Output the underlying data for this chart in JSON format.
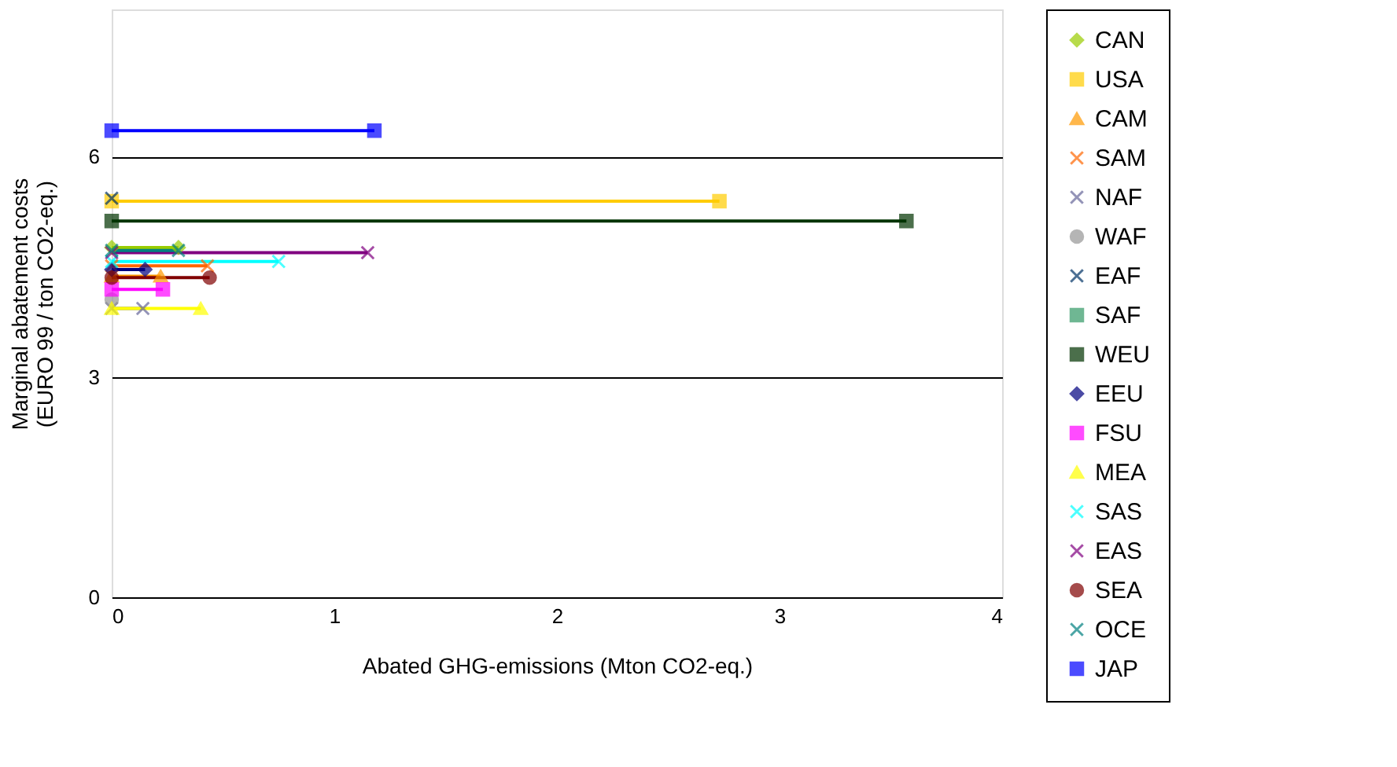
{
  "chart_data": {
    "type": "line",
    "xlabel": "Abated GHG-emissions (Mton CO2-eq.)",
    "ylabel": "Marginal abatement costs\n(EURO 99 / ton CO2-eq.)",
    "xlim": [
      0,
      4
    ],
    "xticks": [
      0,
      1,
      2,
      3,
      4
    ],
    "ylim": [
      0,
      8
    ],
    "yticks": [
      0,
      3,
      6
    ],
    "grid": "y",
    "legend": "right",
    "series": [
      {
        "name": "CAN",
        "color": "#99cc00",
        "marker": "diamond",
        "x": [
          0,
          0.3
        ],
        "values": [
          4.76,
          4.76
        ]
      },
      {
        "name": "USA",
        "color": "#ffcc00",
        "marker": "square",
        "x": [
          0,
          2.73
        ],
        "values": [
          5.39,
          5.39
        ]
      },
      {
        "name": "CAM",
        "color": "#ff9900",
        "marker": "triangle",
        "x": [
          0,
          0.22
        ],
        "values": [
          4.37,
          4.37
        ]
      },
      {
        "name": "SAM",
        "color": "#ff6600",
        "marker": "cross",
        "x": [
          0,
          0.43
        ],
        "values": [
          4.51,
          4.51
        ]
      },
      {
        "name": "NAF",
        "color": "#666699",
        "marker": "cross",
        "x": [
          0,
          0.14
        ],
        "values": [
          3.93,
          3.93
        ]
      },
      {
        "name": "WAF",
        "color": "#969696",
        "marker": "circle",
        "x": [
          0
        ],
        "values": [
          4.05
        ]
      },
      {
        "name": "EAF",
        "color": "#003366",
        "marker": "cross",
        "x": [
          0
        ],
        "values": [
          5.43
        ]
      },
      {
        "name": "SAF",
        "color": "#339966",
        "marker": "square"
      },
      {
        "name": "WEU",
        "color": "#003300",
        "marker": "square",
        "x": [
          0,
          3.57
        ],
        "values": [
          5.12,
          5.12
        ]
      },
      {
        "name": "EEU",
        "color": "#000080",
        "marker": "diamond",
        "x": [
          0,
          0.15
        ],
        "values": [
          4.46,
          4.46
        ]
      },
      {
        "name": "FSU",
        "color": "#ff00ff",
        "marker": "square",
        "x": [
          0,
          0.23
        ],
        "values": [
          4.19,
          4.19
        ]
      },
      {
        "name": "MEA",
        "color": "#ffff00",
        "marker": "triangle",
        "x": [
          0,
          0.4
        ],
        "values": [
          3.93,
          3.93
        ]
      },
      {
        "name": "SAS",
        "color": "#00ffff",
        "marker": "cross",
        "x": [
          0,
          0.75
        ],
        "values": [
          4.57,
          4.57
        ]
      },
      {
        "name": "EAS",
        "color": "#800080",
        "marker": "cross",
        "x": [
          0,
          1.15
        ],
        "values": [
          4.69,
          4.69
        ]
      },
      {
        "name": "SEA",
        "color": "#800000",
        "marker": "circle",
        "x": [
          0,
          0.44
        ],
        "values": [
          4.35,
          4.35
        ]
      },
      {
        "name": "OCE",
        "color": "#008080",
        "marker": "cross",
        "x": [
          0,
          0.3
        ],
        "values": [
          4.72,
          4.72
        ]
      },
      {
        "name": "JAP",
        "color": "#0000ff",
        "marker": "square",
        "x": [
          0,
          1.18
        ],
        "values": [
          6.35,
          6.35
        ]
      }
    ]
  }
}
